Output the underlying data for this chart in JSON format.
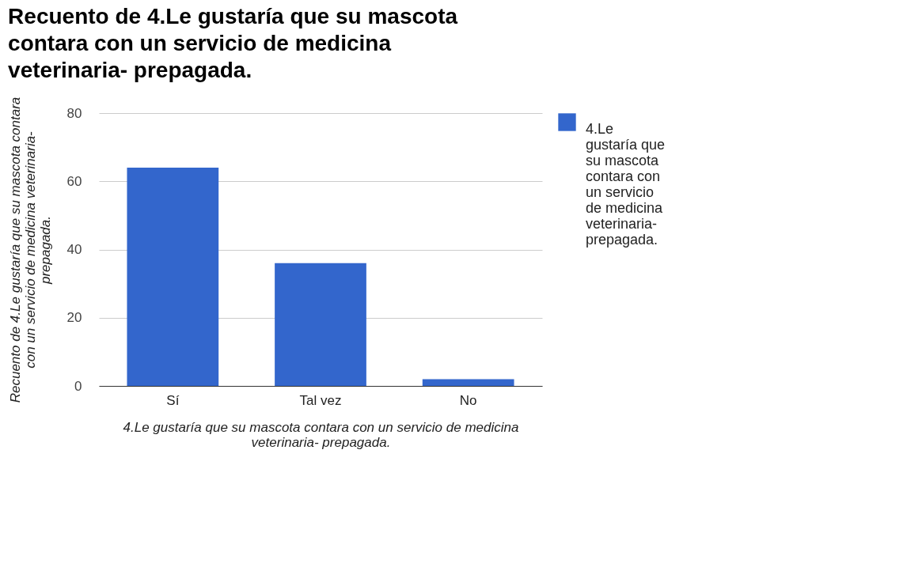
{
  "chart_data": {
    "type": "bar",
    "title": "Recuento de 4.Le gustaría que su mascota contara con un servicio de medicina veterinaria- prepagada.",
    "xlabel": "4.Le gustaría que su mascota contara con un servicio de medicina veterinaria- prepagada.",
    "ylabel": "Recuento de 4.Le gustaría que su mascota contara con un servicio de medicina veterinaria- prepagada.",
    "categories": [
      "Sí",
      "Tal vez",
      "No"
    ],
    "series": [
      {
        "name": "4.Le gustaría que su mascota contara con un servicio de medicina veterinaria- prepagada.",
        "color": "#3366cc",
        "values": [
          64,
          36,
          2
        ]
      }
    ],
    "ylim": [
      0,
      80
    ],
    "yticks": [
      0,
      20,
      40,
      60,
      80
    ],
    "grid": "y",
    "legend": "right"
  }
}
